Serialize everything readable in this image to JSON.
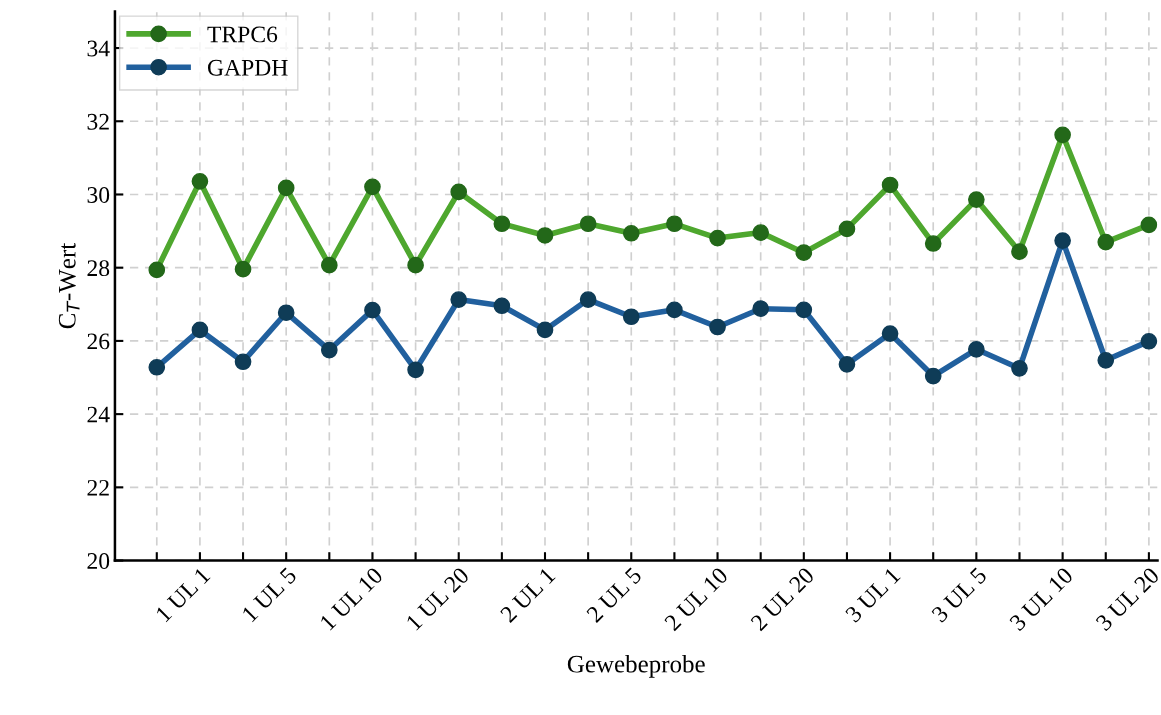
{
  "chart_data": {
    "type": "line",
    "xlabel": "Gewebeprobe",
    "ylabel": "C$_{T}$-Wert",
    "categories": [
      null,
      "1 UL 1",
      null,
      "1 UL 5",
      null,
      "1 UL 10",
      null,
      "1 UL 20",
      null,
      "2 UL 1",
      null,
      "2 UL 5",
      null,
      "2 UL 10",
      null,
      "2 UL 20",
      null,
      "3 UL 1",
      null,
      "3 UL 5",
      null,
      "3 UL 10",
      null,
      "3 UL 20"
    ],
    "series": [
      {
        "name": "TRPC6",
        "color": "#4ea72e",
        "values": [
          27.94,
          30.36,
          27.96,
          30.18,
          28.07,
          30.21,
          28.07,
          30.07,
          29.2,
          28.88,
          29.2,
          28.94,
          29.2,
          28.81,
          28.96,
          28.41,
          29.06,
          30.26,
          28.66,
          29.86,
          28.44,
          31.63,
          28.7,
          29.17
        ]
      },
      {
        "name": "GAPDH",
        "color": "#21609e",
        "values": [
          25.28,
          26.3,
          25.43,
          26.77,
          25.75,
          26.84,
          25.21,
          27.13,
          26.96,
          26.3,
          27.13,
          26.66,
          26.85,
          26.38,
          26.88,
          26.85,
          25.36,
          26.2,
          25.04,
          25.77,
          25.25,
          28.74,
          25.47,
          25.99
        ]
      }
    ],
    "ylim": [
      20,
      35
    ],
    "yticks": [
      20,
      22,
      24,
      26,
      28,
      30,
      32,
      34
    ],
    "grid": true,
    "legend": "top left",
    "marker": "circle",
    "line_style": "solid"
  }
}
